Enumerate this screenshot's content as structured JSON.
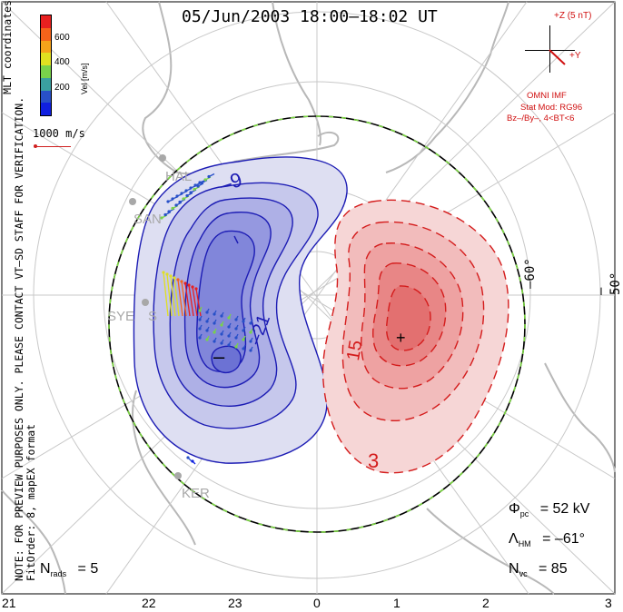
{
  "title": "05/Jun/2003 18:00–18:02 UT",
  "coord_system": "MLT coordinates",
  "note_lines": [
    "NOTE: FOR PREVIEW PURPOSES ONLY. PLEASE CONTACT VT–SD STAFF FOR VERIFICATION.",
    "FitOrder: 8, mapEX format"
  ],
  "color_scale": {
    "label": "Vel [m/s]",
    "ticks": [
      "600",
      "400",
      "200"
    ],
    "colors": [
      "#e82020",
      "#f5631a",
      "#f5a31a",
      "#e0e020",
      "#79d24a",
      "#3aa0a0",
      "#2850c8",
      "#1020e0"
    ]
  },
  "reference_vector": {
    "label": "1000 m/s",
    "color": "#d02020"
  },
  "imf": {
    "z_label": "+Z (5 nT)",
    "y_label": "+Y",
    "source": "OMNI IMF",
    "stat_model": "Stat Mod: RG96",
    "condition": "Bz–/By–, 4<BT<6",
    "color": "#d01010"
  },
  "stations": [
    "HAL",
    "SAN",
    "SYE",
    "S",
    "KER"
  ],
  "latitude_labels": [
    "–60°",
    "–50°"
  ],
  "mlt_axis": [
    "21",
    "22",
    "23",
    "0",
    "1",
    "2",
    "3"
  ],
  "contours": {
    "negative_labels": [
      "–9",
      "–21",
      "–"
    ],
    "positive_labels": [
      "15",
      "3",
      "+"
    ],
    "negative_color": "#1c1cb4",
    "positive_color": "#d41c1c"
  },
  "stats": {
    "phi_pc": {
      "symbol": "Φ",
      "sub": "pc",
      "value": "= 52 kV"
    },
    "lambda_hm": {
      "symbol": "Λ",
      "sub": "HM",
      "value": "= –61°"
    },
    "n_vc": {
      "symbol": "N",
      "sub": "vc",
      "value": "= 85"
    },
    "n_rads": {
      "symbol": "N",
      "sub": "rads",
      "value": "= 5"
    }
  }
}
